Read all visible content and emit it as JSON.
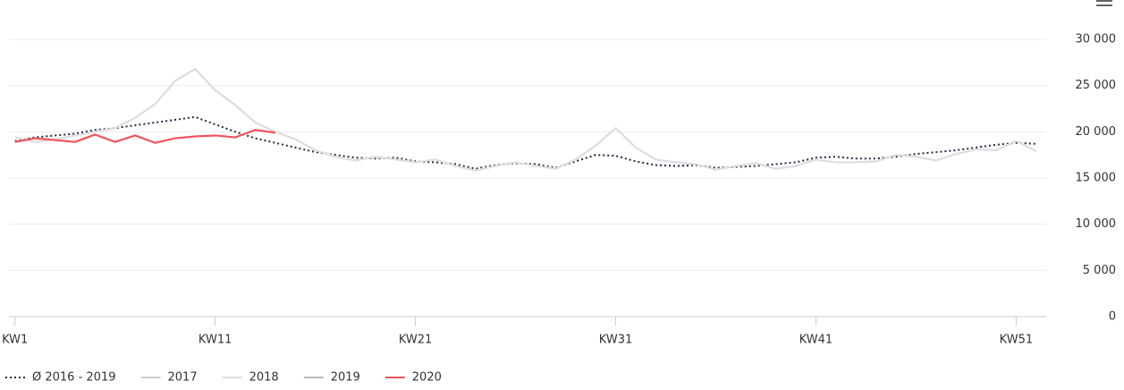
{
  "chart_data": {
    "type": "line",
    "x": [
      1,
      2,
      3,
      4,
      5,
      6,
      7,
      8,
      9,
      10,
      11,
      12,
      13,
      14,
      15,
      16,
      17,
      18,
      19,
      20,
      21,
      22,
      23,
      24,
      25,
      26,
      27,
      28,
      29,
      30,
      31,
      32,
      33,
      34,
      35,
      36,
      37,
      38,
      39,
      40,
      41,
      42,
      43,
      44,
      45,
      46,
      47,
      48,
      49,
      50,
      51,
      52
    ],
    "xlim": [
      0.7,
      52.5
    ],
    "xticks": [
      {
        "value": 1,
        "label": "KW1"
      },
      {
        "value": 11,
        "label": "KW11"
      },
      {
        "value": 21,
        "label": "KW21"
      },
      {
        "value": 31,
        "label": "KW31"
      },
      {
        "value": 41,
        "label": "KW41"
      },
      {
        "value": 51,
        "label": "KW51"
      }
    ],
    "ylim": [
      0,
      30000
    ],
    "yticks": [
      0,
      {
        "value": 5000,
        "label": "5 000"
      },
      {
        "value": 10000,
        "label": "10 000"
      },
      {
        "value": 15000,
        "label": "15 000"
      },
      {
        "value": 20000,
        "label": "20 000"
      },
      {
        "value": 25000,
        "label": "25 000"
      },
      {
        "value": 30000,
        "label": "30 000"
      }
    ],
    "grid": true,
    "series": [
      {
        "name": "Ø 2016 - 2019",
        "color": "#1f2a44",
        "dash": "2,3",
        "values": [
          19000,
          19400,
          19600,
          19800,
          20200,
          20400,
          20700,
          21000,
          21300,
          21600,
          20800,
          20000,
          19300,
          18800,
          18300,
          17800,
          17500,
          17200,
          17100,
          17200,
          16800,
          16700,
          16500,
          16000,
          16400,
          16600,
          16500,
          16100,
          16800,
          17500,
          17400,
          16800,
          16400,
          16300,
          16400,
          16100,
          16200,
          16300,
          16500,
          16700,
          17200,
          17300,
          17100,
          17100,
          17300,
          17600,
          17800,
          18000,
          18300,
          18600,
          18800,
          18700
        ]
      },
      {
        "name": "2017",
        "color": "#cccccc",
        "visible": false
      },
      {
        "name": "2018",
        "color": "#dddddd",
        "values": [
          19400,
          18900,
          19200,
          19600,
          20000,
          20400,
          21500,
          23000,
          25500,
          26800,
          24500,
          22900,
          21000,
          20000,
          19200,
          18000,
          17300,
          16900,
          17300,
          17000,
          16700,
          17000,
          16300,
          15800,
          16300,
          16700,
          16300,
          16000,
          17000,
          18500,
          20400,
          18300,
          17000,
          16700,
          16500,
          15900,
          16300,
          16600,
          16000,
          16300,
          17000,
          16700,
          16700,
          16800,
          17500,
          17300,
          16900,
          17600,
          18100,
          18000,
          19000,
          17900
        ]
      },
      {
        "name": "2019",
        "color": "#bbbbbb",
        "visible": false
      },
      {
        "name": "2020",
        "color": "#f2545b",
        "values": [
          18900,
          19300,
          19100,
          18900,
          19700,
          18900,
          19600,
          18800,
          19300,
          19500,
          19600,
          19400,
          20200,
          19900,
          null,
          null,
          null,
          null,
          null,
          null,
          null,
          null,
          null,
          null,
          null,
          null,
          null,
          null,
          null,
          null,
          null,
          null,
          null,
          null,
          null,
          null,
          null,
          null,
          null,
          null,
          null,
          null,
          null,
          null,
          null,
          null,
          null,
          null,
          null,
          null,
          null,
          null
        ]
      }
    ]
  }
}
